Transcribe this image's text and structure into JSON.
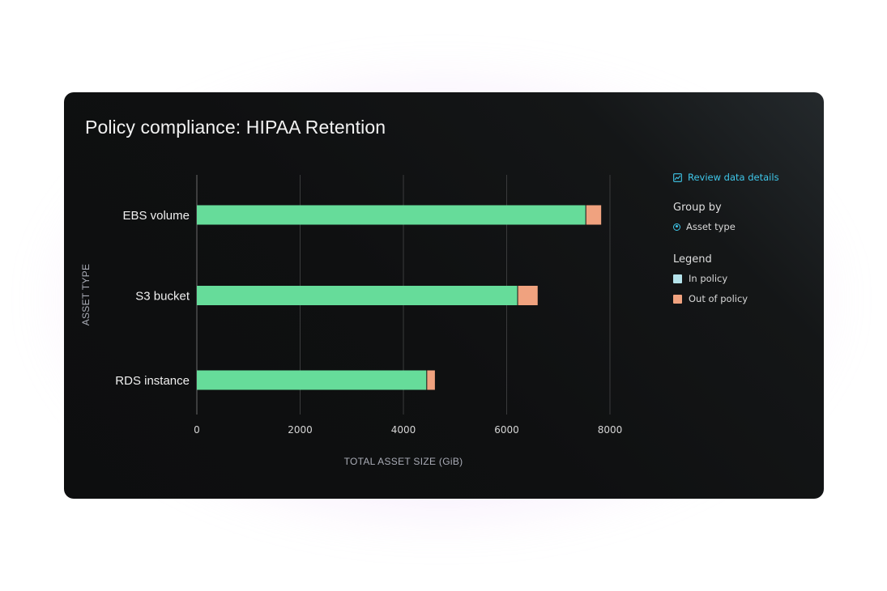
{
  "card": {
    "title": "Policy compliance: HIPAA Retention"
  },
  "side_panel": {
    "review_link": "Review data details",
    "group_by": {
      "title": "Group by",
      "selected_option": "Asset type"
    },
    "legend": {
      "title": "Legend",
      "items": [
        {
          "label": "In policy",
          "color": "#b5e3eb"
        },
        {
          "label": "Out of policy",
          "color": "#f0a27f"
        }
      ]
    }
  },
  "colors": {
    "in_policy_bar": "#66dc9a",
    "out_of_policy_bar": "#f0a27f",
    "accent": "#3fc7ea"
  },
  "chart_data": {
    "type": "bar",
    "orientation": "horizontal",
    "stacked": true,
    "categories": [
      "EBS volume",
      "S3 bucket",
      "RDS instance"
    ],
    "series": [
      {
        "name": "In policy",
        "values": [
          7540,
          6220,
          4460
        ]
      },
      {
        "name": "Out of policy",
        "values": [
          290,
          380,
          150
        ]
      }
    ],
    "xlabel": "TOTAL ASSET SIZE (GiB)",
    "ylabel": "ASSET TYPE",
    "xlim": [
      0,
      8000
    ],
    "xticks": [
      0,
      2000,
      4000,
      6000,
      8000
    ],
    "grid": "vertical",
    "legend_position": "right"
  }
}
